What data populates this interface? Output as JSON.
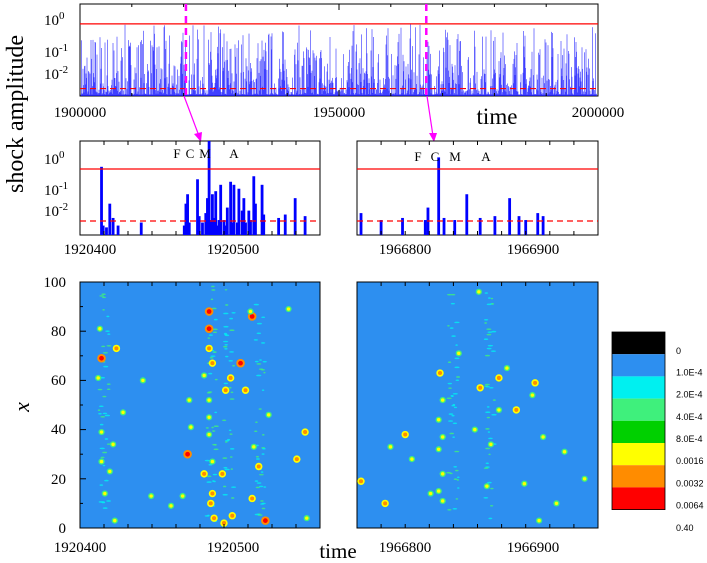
{
  "chart_data": [
    {
      "type": "bar",
      "panel": "top",
      "xlabel": "time",
      "ylabel": "shock amplitude",
      "xlim": [
        1900000,
        2000000
      ],
      "ylim_log": [
        0.002,
        2
      ],
      "log_y": true,
      "x_ticks": [
        "1900000",
        "1950000",
        "2000000"
      ],
      "y_tick_exponents": [
        "0",
        "-1",
        "-2"
      ],
      "threshold_solid": 0.45,
      "threshold_dashed": 0.0035,
      "series_color": "#0000ff",
      "threshold_color": "#ff0000",
      "marker_times": [
        1920450,
        1966850
      ]
    },
    {
      "type": "bar",
      "panel": "zoom-left",
      "xlim": [
        1920400,
        1920545
      ],
      "x_ticks": [
        "1920400",
        "1920500"
      ],
      "annotations": [
        "F",
        "C",
        "M",
        "A"
      ],
      "bars": [
        [
          1920413,
          0.3
        ],
        [
          1920414,
          0.004
        ],
        [
          1920416,
          0.0035
        ],
        [
          1920418,
          0.02
        ],
        [
          1920420,
          0.007
        ],
        [
          1920423,
          0.004
        ],
        [
          1920437,
          0.005
        ],
        [
          1920463,
          0.004
        ],
        [
          1920464,
          0.02
        ],
        [
          1920465,
          0.04
        ],
        [
          1920466,
          0.005
        ],
        [
          1920471,
          0.12
        ],
        [
          1920472,
          0.008
        ],
        [
          1920474,
          0.005
        ],
        [
          1920476,
          0.01
        ],
        [
          1920477,
          0.03
        ],
        [
          1920478,
          3
        ],
        [
          1920479,
          0.006
        ],
        [
          1920480,
          0.04
        ],
        [
          1920481,
          0.007
        ],
        [
          1920482,
          0.05
        ],
        [
          1920483,
          0.004
        ],
        [
          1920484,
          0.006
        ],
        [
          1920485,
          0.08
        ],
        [
          1920487,
          0.006
        ],
        [
          1920488,
          0.004
        ],
        [
          1920489,
          0.015
        ],
        [
          1920491,
          0.1
        ],
        [
          1920492,
          0.005
        ],
        [
          1920493,
          0.08
        ],
        [
          1920495,
          0.005
        ],
        [
          1920496,
          0.06
        ],
        [
          1920498,
          0.012
        ],
        [
          1920499,
          0.03
        ],
        [
          1920500,
          0.005
        ],
        [
          1920502,
          0.012
        ],
        [
          1920503,
          0.006
        ],
        [
          1920505,
          0.15
        ],
        [
          1920506,
          0.02
        ],
        [
          1920510,
          0.08
        ],
        [
          1920511,
          0.009
        ],
        [
          1920520,
          0.007
        ],
        [
          1920524,
          0.009
        ],
        [
          1920530,
          0.03
        ],
        [
          1920536,
          0.008
        ]
      ]
    },
    {
      "type": "bar",
      "panel": "zoom-right",
      "xlim": [
        1966765,
        1966945
      ],
      "x_ticks": [
        "1966800",
        "1966900"
      ],
      "annotations": [
        "F",
        "C",
        "M",
        "A"
      ],
      "bars": [
        [
          1966768,
          0.01
        ],
        [
          1966783,
          0.006
        ],
        [
          1966799,
          0.007
        ],
        [
          1966816,
          0.006
        ],
        [
          1966818,
          0.015
        ],
        [
          1966826,
          0.6
        ],
        [
          1966830,
          0.007
        ],
        [
          1966838,
          0.006
        ],
        [
          1966847,
          0.04
        ],
        [
          1966857,
          0.007
        ],
        [
          1966868,
          0.008
        ],
        [
          1966879,
          0.03
        ],
        [
          1966886,
          0.008
        ],
        [
          1966891,
          0.006
        ],
        [
          1966900,
          0.01
        ],
        [
          1966904,
          0.008
        ]
      ]
    },
    {
      "type": "heatmap",
      "panel": "map-left",
      "ylabel": "x",
      "xlabel": "time",
      "xlim": [
        1920400,
        1920545
      ],
      "ylim": [
        0,
        100
      ],
      "x_ticks": [
        "1920400",
        "1920500"
      ],
      "y_ticks": [
        "0",
        "20",
        "40",
        "60",
        "80",
        "100"
      ],
      "background": "#2d8ff0",
      "spots": [
        [
          1920478,
          88,
          3
        ],
        [
          1920478,
          81,
          3
        ],
        [
          1920478,
          73,
          2
        ],
        [
          1920480,
          67,
          2
        ],
        [
          1920497,
          67,
          3
        ],
        [
          1920504,
          86,
          3
        ],
        [
          1920503,
          88,
          1
        ],
        [
          1920491,
          61,
          2
        ],
        [
          1920488,
          56,
          2
        ],
        [
          1920500,
          56,
          2
        ],
        [
          1920413,
          69,
          3
        ],
        [
          1920422,
          73,
          2
        ],
        [
          1920412,
          81,
          1
        ],
        [
          1920438,
          60,
          1
        ],
        [
          1920411,
          61,
          1
        ],
        [
          1920465,
          30,
          3
        ],
        [
          1920475,
          22,
          2
        ],
        [
          1920486,
          22,
          2
        ],
        [
          1920480,
          14,
          2
        ],
        [
          1920479,
          10,
          2
        ],
        [
          1920504,
          12,
          2
        ],
        [
          1920508,
          25,
          2
        ],
        [
          1920531,
          28,
          2
        ],
        [
          1920536,
          39,
          2
        ],
        [
          1920512,
          3,
          3
        ],
        [
          1920487,
          2,
          2
        ],
        [
          1920481,
          4,
          2
        ],
        [
          1920492,
          5,
          2
        ],
        [
          1920413,
          39,
          1
        ],
        [
          1920426,
          47,
          1
        ],
        [
          1920420,
          34,
          1
        ],
        [
          1920415,
          14,
          1
        ],
        [
          1920413,
          27,
          1
        ],
        [
          1920443,
          13,
          1
        ],
        [
          1920421,
          3,
          1
        ],
        [
          1920478,
          45,
          1
        ],
        [
          1920478,
          52,
          1
        ],
        [
          1920478,
          38,
          1
        ],
        [
          1920480,
          27,
          1
        ],
        [
          1920466,
          52,
          1
        ],
        [
          1920462,
          13,
          1
        ],
        [
          1920505,
          33,
          1
        ],
        [
          1920526,
          89,
          1
        ],
        [
          1920537,
          4,
          1
        ],
        [
          1920467,
          41,
          1
        ],
        [
          1920475,
          62,
          1
        ],
        [
          1920455,
          9,
          1
        ],
        [
          1920514,
          46,
          1
        ],
        [
          1920418,
          23,
          1
        ]
      ]
    },
    {
      "type": "heatmap",
      "panel": "map-right",
      "xlim": [
        1966765,
        1966945
      ],
      "ylim": [
        0,
        100
      ],
      "x_ticks": [
        "1966800",
        "1966900"
      ],
      "background": "#2d8ff0",
      "spots": [
        [
          1966827,
          63,
          2
        ],
        [
          1966857,
          57,
          2
        ],
        [
          1966871,
          61,
          2
        ],
        [
          1966898,
          59,
          2
        ],
        [
          1966884,
          48,
          2
        ],
        [
          1966768,
          19,
          2
        ],
        [
          1966801,
          38,
          2
        ],
        [
          1966786,
          10,
          2
        ],
        [
          1966829,
          52,
          1
        ],
        [
          1966826,
          44,
          1
        ],
        [
          1966829,
          37,
          1
        ],
        [
          1966826,
          32,
          1
        ],
        [
          1966829,
          22,
          1
        ],
        [
          1966826,
          15,
          1
        ],
        [
          1966829,
          11,
          1
        ],
        [
          1966856,
          96,
          1
        ],
        [
          1966871,
          48,
          1
        ],
        [
          1966865,
          34,
          1
        ],
        [
          1966896,
          54,
          1
        ],
        [
          1966904,
          37,
          1
        ],
        [
          1966935,
          20,
          1
        ],
        [
          1966901,
          3,
          1
        ],
        [
          1966914,
          10,
          1
        ],
        [
          1966920,
          31,
          1
        ],
        [
          1966806,
          28,
          1
        ],
        [
          1966820,
          14,
          1
        ],
        [
          1966853,
          40,
          1
        ],
        [
          1966877,
          65,
          1
        ],
        [
          1966862,
          17,
          1
        ],
        [
          1966790,
          33,
          1
        ],
        [
          1966841,
          71,
          1
        ],
        [
          1966890,
          18,
          1
        ]
      ]
    }
  ],
  "colorbar": {
    "colors": [
      "#000000",
      "#2d8ff0",
      "#00f0f0",
      "#3ff07c",
      "#00d000",
      "#ffff00",
      "#ff8c00",
      "#ff0000"
    ],
    "labels": [
      "0",
      "1.0E-4",
      "2.0E-4",
      "4.0E-4",
      "8.0E-4",
      "0.0016",
      "0.0032",
      "0.0064",
      "0.40"
    ]
  }
}
